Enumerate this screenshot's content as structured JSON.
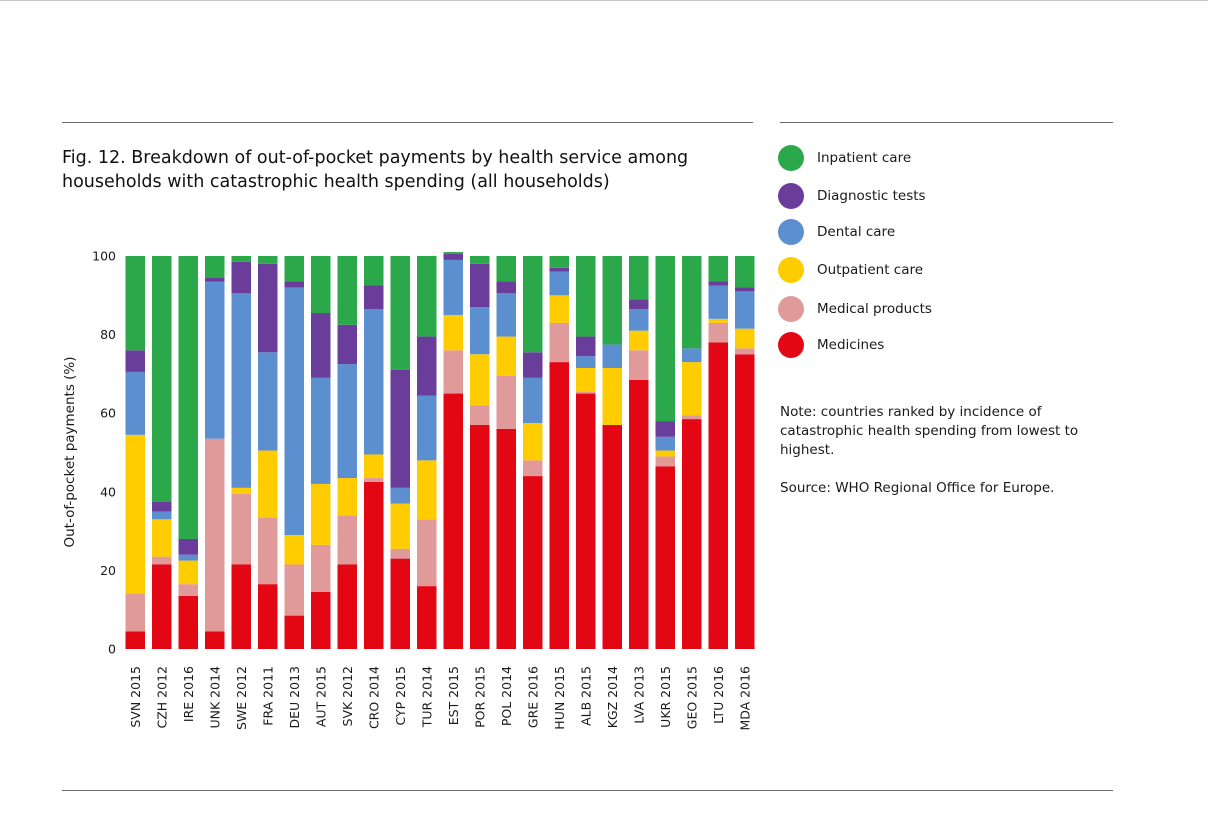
{
  "title": "Fig. 12. Breakdown of out-of-pocket payments by health service among households with catastrophic health spending (all households)",
  "note": "Note: countries ranked by incidence of catastrophic health spending from lowest to highest.",
  "source": "Source: WHO Regional Office for Europe.",
  "colors": {
    "Inpatient care": "#2aa84a",
    "Diagnostic tests": "#6a3d9a",
    "Dental care": "#5b8fd0",
    "Outpatient care": "#ffcc00",
    "Medical products": "#e09a9a",
    "Medicines": "#e30613"
  },
  "legend": [
    {
      "label": "Inpatient care",
      "color": "#2aa84a"
    },
    {
      "label": "Diagnostic tests",
      "color": "#6a3d9a"
    },
    {
      "label": "Dental care",
      "color": "#5b8fd0"
    },
    {
      "label": "Outpatient care",
      "color": "#ffcc00"
    },
    {
      "label": "Medical products",
      "color": "#e09a9a"
    },
    {
      "label": "Medicines",
      "color": "#e30613"
    }
  ],
  "chart_data": {
    "type": "bar",
    "stacked": true,
    "title": "Fig. 12. Breakdown of out-of-pocket payments by health service among households with catastrophic health spending (all households)",
    "xlabel": "",
    "ylabel": "Out-of-pocket payments (%)",
    "ylim": [
      0,
      100
    ],
    "yticks": [
      0,
      20,
      40,
      60,
      80,
      100
    ],
    "grid": false,
    "legend_position": "right",
    "categories": [
      "SVN 2015",
      "CZH 2012",
      "IRE 2016",
      "UNK 2014",
      "SWE 2012",
      "FRA 2011",
      "DEU 2013",
      "AUT 2015",
      "SVK 2012",
      "CRO 2014",
      "CYP 2015",
      "TUR 2014",
      "EST 2015",
      "POR 2015",
      "POL 2014",
      "GRE 2016",
      "HUN 2015",
      "ALB 2015",
      "KGZ 2014",
      "LVA 2013",
      "UKR 2015",
      "GEO 2015",
      "LTU 2016",
      "MDA 2016"
    ],
    "series": [
      {
        "name": "Medicines",
        "values": [
          4.5,
          21.5,
          13.5,
          4.5,
          21.5,
          16.5,
          8.5,
          14.5,
          21.5,
          42.5,
          23,
          16,
          65,
          57,
          56,
          44,
          73,
          65,
          57,
          68.5,
          46.5,
          58.5,
          78,
          75
        ]
      },
      {
        "name": "Medical products",
        "values": [
          9.5,
          2,
          3,
          49,
          18,
          17,
          13,
          12,
          12.5,
          1,
          2.5,
          17,
          11,
          5,
          13.5,
          4,
          10,
          0.5,
          0,
          7.5,
          2.5,
          1,
          5,
          1.5
        ]
      },
      {
        "name": "Outpatient care",
        "values": [
          40.5,
          9.5,
          6,
          0,
          1.5,
          17,
          7.5,
          15.5,
          9.5,
          6,
          11.5,
          15,
          9,
          13,
          10,
          9.5,
          7,
          6,
          14.5,
          5,
          1.5,
          13.5,
          1,
          5
        ]
      },
      {
        "name": "Dental care",
        "values": [
          16,
          2,
          1.5,
          40,
          49.5,
          25,
          63,
          27,
          29,
          37,
          4,
          16.5,
          14,
          12,
          11,
          11.5,
          6,
          3,
          6,
          5.5,
          3.5,
          3.5,
          8.5,
          9.5
        ]
      },
      {
        "name": "Diagnostic tests",
        "values": [
          5.5,
          2.5,
          4,
          1,
          8,
          22.5,
          1.5,
          16.5,
          10,
          6,
          30,
          15,
          1.5,
          11,
          3,
          6.5,
          1,
          5,
          0,
          2.5,
          4,
          0,
          1,
          1
        ]
      },
      {
        "name": "Inpatient care",
        "values": [
          24,
          62.5,
          72,
          5.5,
          1.5,
          2,
          6.5,
          14.5,
          17.5,
          7.5,
          29,
          20.5,
          0.5,
          2,
          6.5,
          24.5,
          3,
          20.5,
          22.5,
          11,
          42,
          23.5,
          6.5,
          8
        ]
      }
    ]
  }
}
